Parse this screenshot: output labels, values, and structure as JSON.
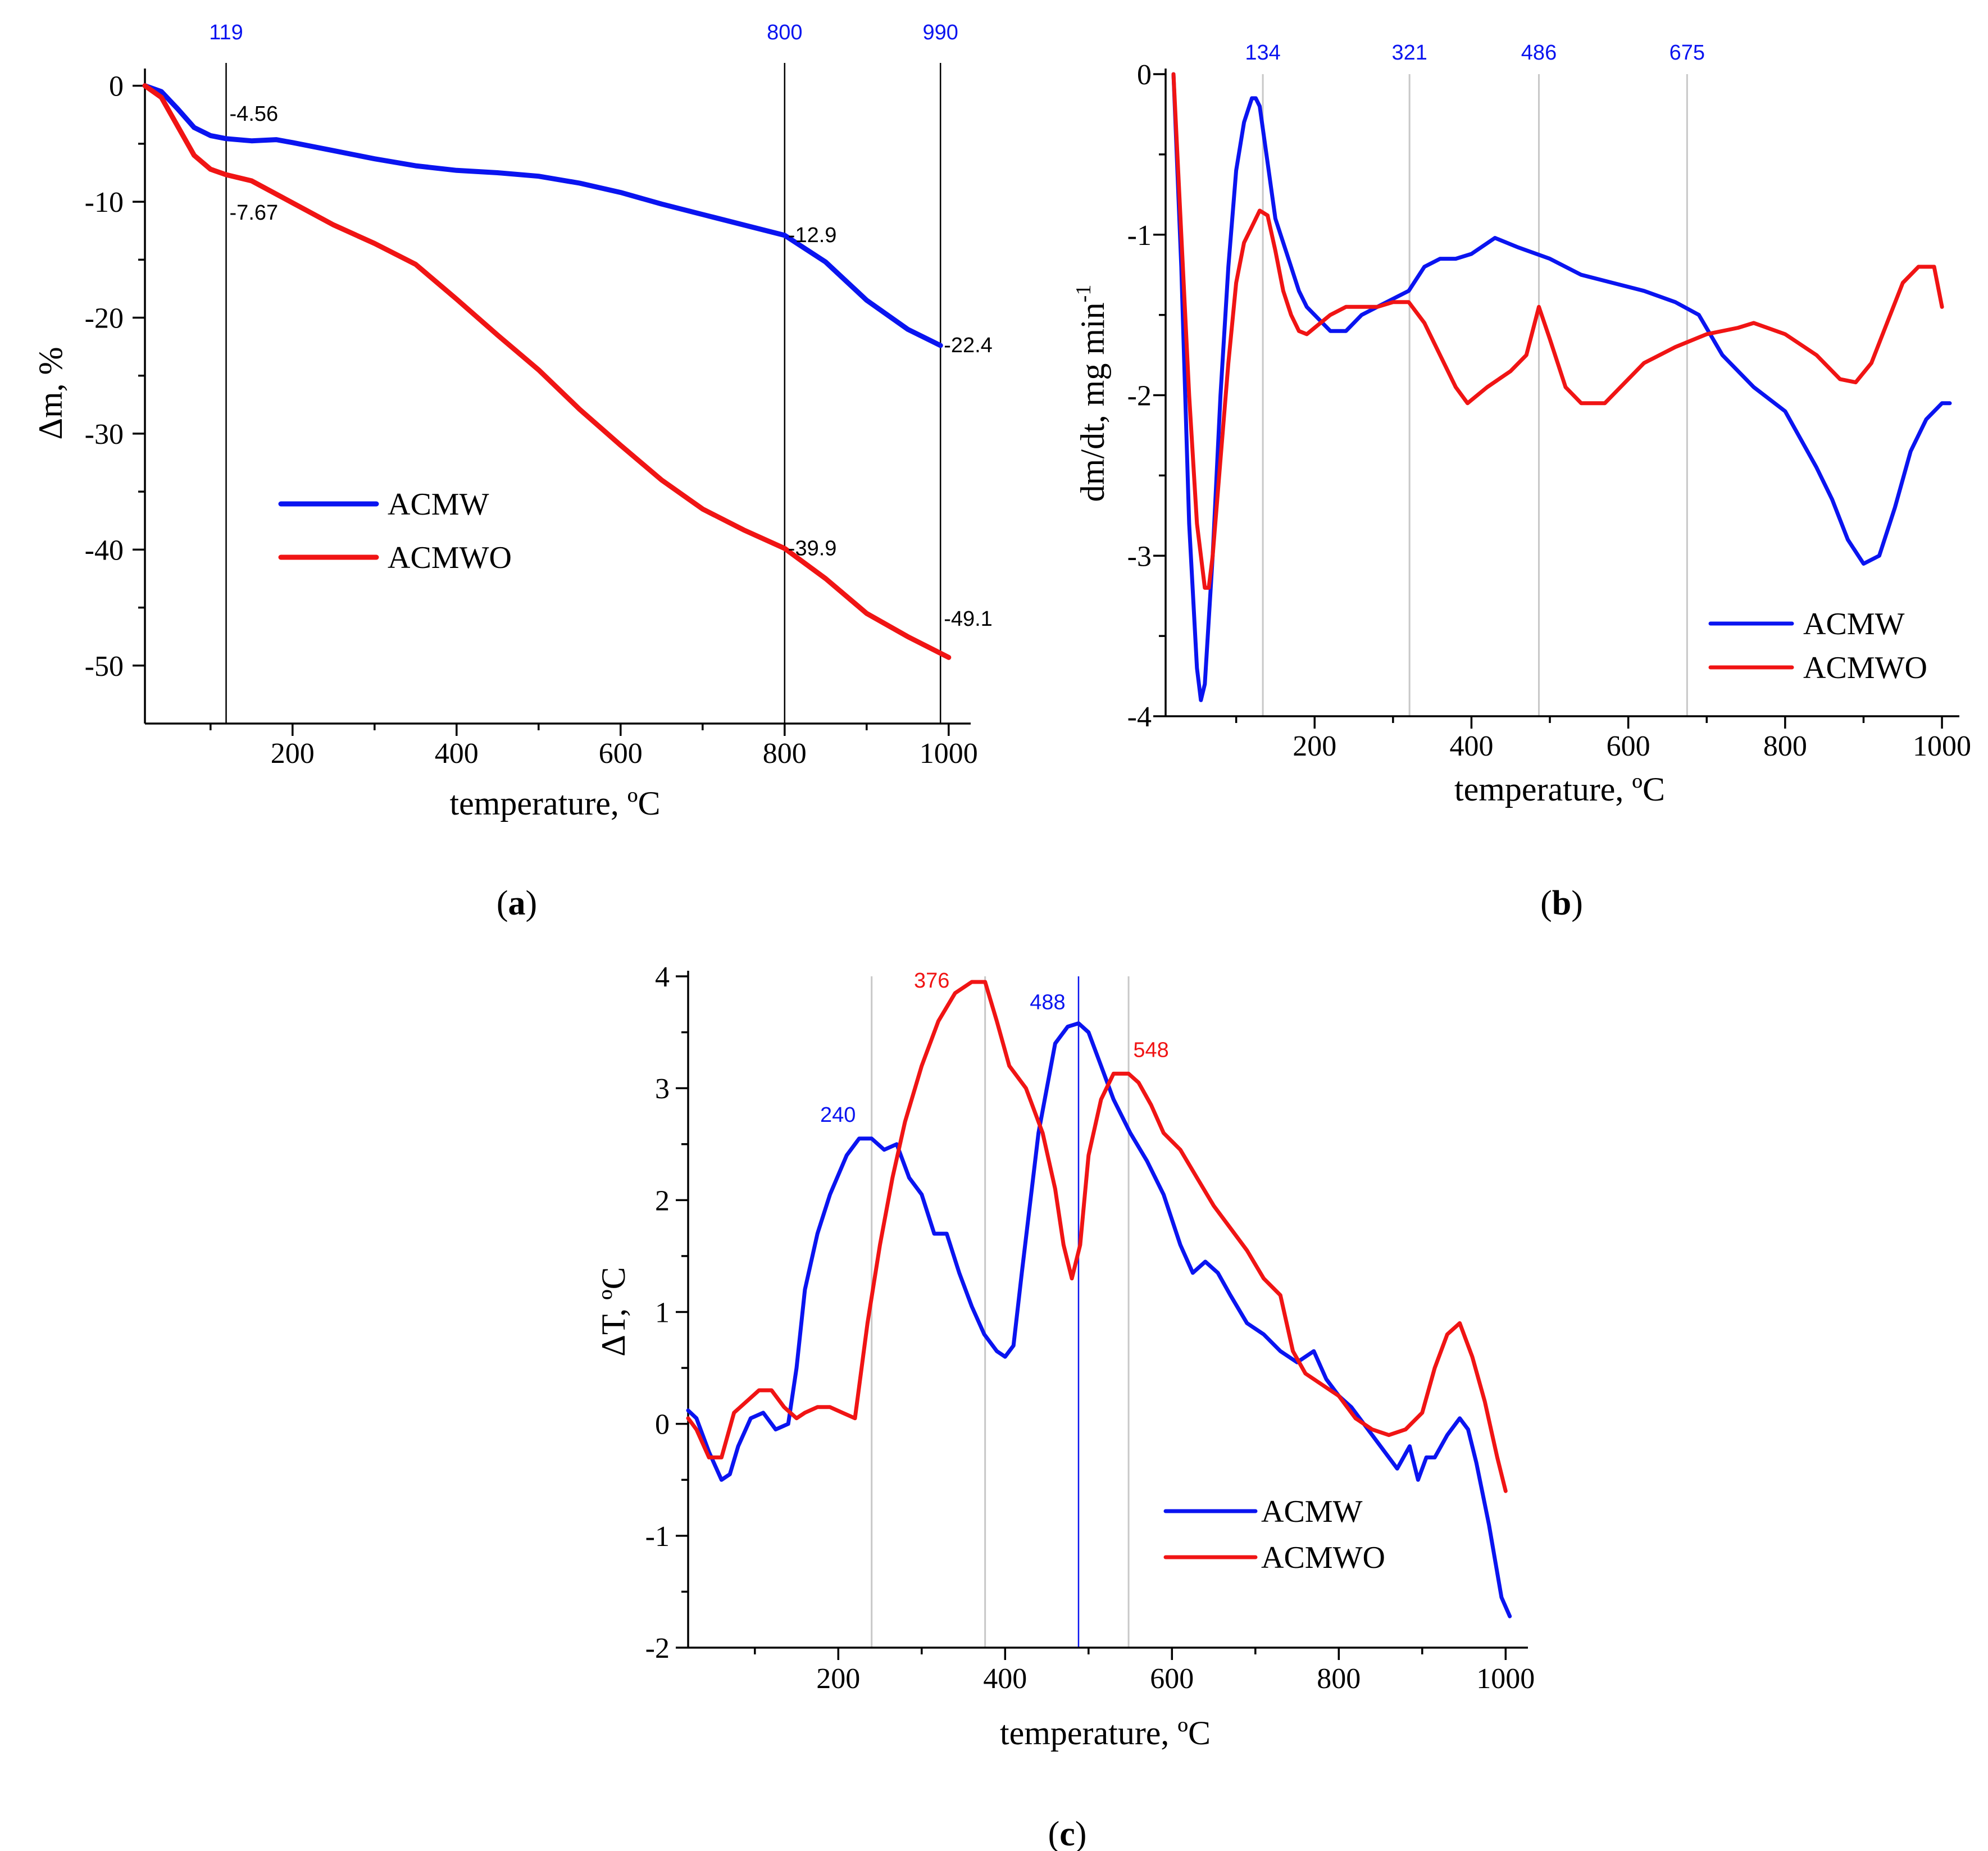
{
  "colors": {
    "blue": "#0a14f0",
    "red": "#f01414",
    "grid": "#c8c8c8",
    "black": "#000000"
  },
  "chart_data": [
    {
      "id": "a",
      "type": "line",
      "caption": {
        "open": "(",
        "letter": "a",
        "close": ")"
      },
      "xlabel": "temperature, ºC",
      "ylabel": "Δm, %",
      "xlim": [
        20,
        1020
      ],
      "ylim": [
        -55,
        1
      ],
      "xticks": [
        200,
        400,
        600,
        800,
        1000
      ],
      "xticks_minor": [
        100,
        300,
        500,
        700,
        900
      ],
      "yticks": [
        0,
        -10,
        -20,
        -30,
        -40,
        -50
      ],
      "yticks_minor": [
        -5,
        -15,
        -25,
        -35,
        -45
      ],
      "vlines": [
        {
          "x": 119,
          "label": "119",
          "color": "blue",
          "line": "black"
        },
        {
          "x": 800,
          "label": "800",
          "color": "blue",
          "line": "black"
        },
        {
          "x": 990,
          "label": "990",
          "color": "blue",
          "line": "black"
        }
      ],
      "annotations": [
        {
          "x": 119,
          "y": -4.56,
          "text": "-4.56"
        },
        {
          "x": 119,
          "y": -7.67,
          "text": "-7.67"
        },
        {
          "x": 800,
          "y": -12.9,
          "text": "-12.9"
        },
        {
          "x": 990,
          "y": -22.4,
          "text": "-22.4"
        },
        {
          "x": 800,
          "y": -39.9,
          "text": "-39.9"
        },
        {
          "x": 990,
          "y": -49.1,
          "text": "-49.1"
        }
      ],
      "legend": {
        "position": "center-left"
      },
      "series": [
        {
          "name": "ACMW",
          "color": "blue",
          "x": [
            20,
            40,
            60,
            80,
            100,
            119,
            150,
            180,
            200,
            250,
            300,
            350,
            400,
            450,
            500,
            550,
            600,
            650,
            700,
            750,
            800,
            850,
            900,
            950,
            990
          ],
          "y": [
            0,
            -0.5,
            -2,
            -3.6,
            -4.3,
            -4.56,
            -4.75,
            -4.65,
            -4.9,
            -5.6,
            -6.3,
            -6.9,
            -7.3,
            -7.5,
            -7.8,
            -8.4,
            -9.2,
            -10.2,
            -11.1,
            -12.0,
            -12.9,
            -15.2,
            -18.5,
            -21.0,
            -22.4
          ]
        },
        {
          "name": "ACMWO",
          "color": "red",
          "x": [
            20,
            40,
            60,
            80,
            100,
            119,
            150,
            200,
            250,
            300,
            350,
            400,
            450,
            500,
            550,
            600,
            650,
            700,
            750,
            800,
            850,
            900,
            950,
            1000
          ],
          "y": [
            0,
            -1,
            -3.5,
            -6,
            -7.2,
            -7.67,
            -8.2,
            -10.1,
            -12.0,
            -13.6,
            -15.4,
            -18.4,
            -21.5,
            -24.5,
            -27.9,
            -31.0,
            -34.0,
            -36.5,
            -38.3,
            -39.9,
            -42.5,
            -45.5,
            -47.5,
            -49.3
          ]
        }
      ]
    },
    {
      "id": "b",
      "type": "line",
      "caption": {
        "open": "(",
        "letter": "b",
        "close": ")"
      },
      "xlabel": "temperature, ºC",
      "ylabel": "dm/dt, mg min",
      "ylabel_sup": "-1",
      "xlim": [
        10,
        1015
      ],
      "ylim": [
        -4,
        0
      ],
      "xticks": [
        200,
        400,
        600,
        800,
        1000
      ],
      "xticks_minor": [
        100,
        300,
        500,
        700,
        900
      ],
      "yticks": [
        0,
        -1,
        -2,
        -3,
        -4
      ],
      "yticks_minor": [
        -0.5,
        -1.5,
        -2.5,
        -3.5
      ],
      "vlines": [
        {
          "x": 134,
          "label": "134",
          "color": "blue",
          "line": "grid"
        },
        {
          "x": 321,
          "label": "321",
          "color": "blue",
          "line": "grid"
        },
        {
          "x": 486,
          "label": "486",
          "color": "blue",
          "line": "grid"
        },
        {
          "x": 675,
          "label": "675",
          "color": "blue",
          "line": "grid"
        }
      ],
      "annotations": [],
      "legend": {
        "position": "bottom-right"
      },
      "series": [
        {
          "name": "ACMW",
          "color": "blue",
          "x": [
            20,
            30,
            40,
            50,
            55,
            60,
            70,
            80,
            90,
            100,
            110,
            120,
            125,
            130,
            140,
            150,
            160,
            170,
            180,
            190,
            200,
            220,
            240,
            260,
            280,
            300,
            320,
            340,
            360,
            380,
            400,
            430,
            460,
            500,
            540,
            580,
            620,
            660,
            690,
            720,
            760,
            800,
            840,
            860,
            880,
            900,
            920,
            940,
            960,
            980,
            1000,
            1010
          ],
          "y": [
            0,
            -1.2,
            -2.8,
            -3.7,
            -3.9,
            -3.8,
            -3.0,
            -2.0,
            -1.2,
            -0.6,
            -0.3,
            -0.15,
            -0.15,
            -0.2,
            -0.55,
            -0.9,
            -1.05,
            -1.2,
            -1.35,
            -1.45,
            -1.5,
            -1.6,
            -1.6,
            -1.5,
            -1.45,
            -1.4,
            -1.35,
            -1.2,
            -1.15,
            -1.15,
            -1.12,
            -1.02,
            -1.08,
            -1.15,
            -1.25,
            -1.3,
            -1.35,
            -1.42,
            -1.5,
            -1.75,
            -1.95,
            -2.1,
            -2.45,
            -2.65,
            -2.9,
            -3.05,
            -3.0,
            -2.7,
            -2.35,
            -2.15,
            -2.05,
            -2.05
          ]
        },
        {
          "name": "ACMWO",
          "color": "red",
          "x": [
            20,
            30,
            40,
            50,
            60,
            65,
            70,
            80,
            90,
            100,
            110,
            120,
            130,
            140,
            150,
            160,
            170,
            180,
            190,
            200,
            220,
            240,
            260,
            280,
            300,
            320,
            340,
            360,
            380,
            395,
            420,
            450,
            470,
            486,
            500,
            520,
            540,
            570,
            590,
            620,
            660,
            700,
            740,
            760,
            800,
            840,
            870,
            890,
            910,
            930,
            950,
            970,
            990,
            1000
          ],
          "y": [
            0,
            -1.0,
            -2.0,
            -2.8,
            -3.2,
            -3.2,
            -3.0,
            -2.4,
            -1.8,
            -1.3,
            -1.05,
            -0.95,
            -0.85,
            -0.88,
            -1.1,
            -1.35,
            -1.5,
            -1.6,
            -1.62,
            -1.58,
            -1.5,
            -1.45,
            -1.45,
            -1.45,
            -1.42,
            -1.42,
            -1.55,
            -1.75,
            -1.95,
            -2.05,
            -1.95,
            -1.85,
            -1.75,
            -1.45,
            -1.65,
            -1.95,
            -2.05,
            -2.05,
            -1.95,
            -1.8,
            -1.7,
            -1.62,
            -1.58,
            -1.55,
            -1.62,
            -1.75,
            -1.9,
            -1.92,
            -1.8,
            -1.55,
            -1.3,
            -1.2,
            -1.2,
            -1.45
          ]
        }
      ]
    },
    {
      "id": "c",
      "type": "line",
      "caption": {
        "open": "(",
        "letter": "c",
        "close": ")"
      },
      "xlabel": "temperature, ºC",
      "ylabel": "ΔT, ºC",
      "xlim": [
        20,
        1020
      ],
      "ylim": [
        -2,
        4
      ],
      "xticks": [
        200,
        400,
        600,
        800,
        1000
      ],
      "xticks_minor": [
        100,
        300,
        500,
        700,
        900
      ],
      "yticks": [
        4,
        3,
        2,
        1,
        0,
        -1,
        -2
      ],
      "yticks_minor": [
        3.5,
        2.5,
        1.5,
        0.5,
        -0.5,
        -1.5
      ],
      "vlines": [
        {
          "x": 240,
          "label": "",
          "color": "blue",
          "line": "grid"
        },
        {
          "x": 376,
          "label": "",
          "color": "red",
          "line": "grid"
        },
        {
          "x": 488,
          "label": "",
          "color": "blue",
          "line": "blue"
        },
        {
          "x": 548,
          "label": "",
          "color": "red",
          "line": "grid"
        }
      ],
      "peak_labels": [
        {
          "x": 240,
          "y": 2.55,
          "text": "240",
          "color": "blue"
        },
        {
          "x": 376,
          "y": 3.95,
          "text": "376",
          "color": "red"
        },
        {
          "x": 488,
          "y": 3.58,
          "text": "488",
          "color": "blue"
        },
        {
          "x": 548,
          "y": 3.13,
          "text": "548",
          "color": "red"
        }
      ],
      "annotations": [],
      "legend": {
        "position": "bottom-right"
      },
      "series": [
        {
          "name": "ACMW",
          "color": "blue",
          "x": [
            20,
            30,
            45,
            60,
            70,
            80,
            95,
            110,
            125,
            140,
            150,
            160,
            175,
            190,
            210,
            225,
            240,
            255,
            270,
            285,
            300,
            315,
            330,
            345,
            360,
            375,
            390,
            400,
            410,
            420,
            440,
            460,
            475,
            488,
            500,
            515,
            530,
            550,
            570,
            590,
            610,
            625,
            640,
            655,
            670,
            690,
            710,
            730,
            750,
            770,
            785,
            800,
            815,
            830,
            850,
            870,
            885,
            895,
            905,
            915,
            930,
            945,
            955,
            965,
            980,
            995,
            1005
          ],
          "y": [
            0.12,
            0.05,
            -0.25,
            -0.5,
            -0.45,
            -0.2,
            0.05,
            0.1,
            -0.05,
            0.0,
            0.5,
            1.2,
            1.7,
            2.05,
            2.4,
            2.55,
            2.55,
            2.45,
            2.5,
            2.2,
            2.05,
            1.7,
            1.7,
            1.35,
            1.05,
            0.8,
            0.65,
            0.6,
            0.7,
            1.35,
            2.6,
            3.4,
            3.55,
            3.58,
            3.5,
            3.2,
            2.9,
            2.6,
            2.35,
            2.05,
            1.6,
            1.35,
            1.45,
            1.35,
            1.15,
            0.9,
            0.8,
            0.65,
            0.55,
            0.65,
            0.4,
            0.25,
            0.15,
            0.0,
            -0.2,
            -0.4,
            -0.2,
            -0.5,
            -0.3,
            -0.3,
            -0.1,
            0.05,
            -0.05,
            -0.35,
            -0.9,
            -1.55,
            -1.72
          ]
        },
        {
          "name": "ACMWO",
          "color": "red",
          "x": [
            20,
            30,
            45,
            60,
            75,
            90,
            105,
            120,
            135,
            150,
            160,
            175,
            190,
            205,
            220,
            235,
            250,
            265,
            280,
            300,
            320,
            340,
            360,
            376,
            390,
            405,
            425,
            445,
            460,
            470,
            480,
            490,
            500,
            515,
            530,
            548,
            560,
            575,
            590,
            610,
            630,
            650,
            670,
            690,
            710,
            730,
            745,
            760,
            780,
            800,
            820,
            840,
            860,
            880,
            900,
            915,
            930,
            945,
            960,
            975,
            990,
            1000
          ],
          "y": [
            0.05,
            -0.05,
            -0.3,
            -0.3,
            0.1,
            0.2,
            0.3,
            0.3,
            0.15,
            0.05,
            0.1,
            0.15,
            0.15,
            0.1,
            0.05,
            0.9,
            1.6,
            2.2,
            2.7,
            3.2,
            3.6,
            3.85,
            3.95,
            3.95,
            3.6,
            3.2,
            3.0,
            2.6,
            2.1,
            1.6,
            1.3,
            1.6,
            2.4,
            2.9,
            3.13,
            3.13,
            3.05,
            2.85,
            2.6,
            2.45,
            2.2,
            1.95,
            1.75,
            1.55,
            1.3,
            1.15,
            0.65,
            0.45,
            0.35,
            0.25,
            0.05,
            -0.05,
            -0.1,
            -0.05,
            0.1,
            0.5,
            0.8,
            0.9,
            0.6,
            0.2,
            -0.3,
            -0.6
          ]
        }
      ]
    }
  ]
}
